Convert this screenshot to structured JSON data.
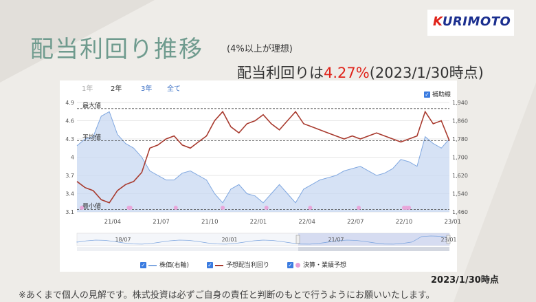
{
  "logo": {
    "text_k": "K",
    "text_rest": "URIMOTO"
  },
  "title": "配当利回り推移",
  "subtitle": "(4%以上が理想)",
  "yield_line": {
    "prefix": "配当利回りは",
    "value": "4.27%",
    "suffix": "(2023/1/30時点)"
  },
  "period_tabs": [
    {
      "label": "1年",
      "active": false
    },
    {
      "label": "2年",
      "active": true
    },
    {
      "label": "3年",
      "active": false
    },
    {
      "label": "全て",
      "active": false
    }
  ],
  "aux_line_label": "補助線",
  "legend": {
    "price": "株価(右軸)",
    "yield": "予想配当利回り",
    "events": "決算・業績予想"
  },
  "as_of": "2023/1/30時点",
  "disclaimer": "※あくまで個人の見解です。株式投資は必ずご自身の責任と判断のもとで行うようにお願いいたします。",
  "chart_data": {
    "type": "line",
    "x_ticks": [
      "21/04",
      "21/07",
      "21/10",
      "22/01",
      "22/04",
      "22/07",
      "22/10",
      "23/01"
    ],
    "y_left": {
      "ticks": [
        "3.1",
        "3.4",
        "3.7",
        "4",
        "4.3",
        "4.6",
        "4.9"
      ],
      "range": [
        3.1,
        4.9
      ]
    },
    "y_right": {
      "ticks": [
        "1,460",
        "1,540",
        "1,620",
        "1,700",
        "1,780",
        "1,860",
        "1,940"
      ],
      "range": [
        1460,
        1940
      ]
    },
    "ref_lines": [
      {
        "label": "最大値",
        "value": 4.8
      },
      {
        "label": "平均値",
        "value": 4.27
      },
      {
        "label": "最小値",
        "value": 3.14
      }
    ],
    "series": [
      {
        "name": "予想配当利回り",
        "axis": "left",
        "color": "#a83a2e",
        "x": [
          0,
          0.5,
          1,
          1.5,
          2,
          2.5,
          3,
          3.5,
          4,
          4.5,
          5,
          5.5,
          6,
          6.5,
          7,
          7.5,
          8,
          8.5,
          9,
          9.5,
          10,
          10.5,
          11,
          11.5,
          12,
          12.5,
          13,
          13.5,
          14,
          14.5,
          15,
          15.5,
          16,
          16.5,
          17,
          17.5,
          18,
          18.5,
          19,
          19.5,
          20,
          20.5,
          21,
          21.5,
          22,
          22.5,
          23
        ],
        "values": [
          3.6,
          3.5,
          3.45,
          3.3,
          3.25,
          3.45,
          3.55,
          3.6,
          3.75,
          4.15,
          4.2,
          4.3,
          4.35,
          4.2,
          4.15,
          4.25,
          4.35,
          4.6,
          4.75,
          4.5,
          4.4,
          4.55,
          4.6,
          4.7,
          4.55,
          4.45,
          4.6,
          4.75,
          4.55,
          4.5,
          4.45,
          4.4,
          4.35,
          4.3,
          4.35,
          4.3,
          4.35,
          4.4,
          4.35,
          4.3,
          4.25,
          4.3,
          4.35,
          4.75,
          4.55,
          4.6,
          4.27
        ]
      },
      {
        "name": "株価",
        "axis": "right",
        "color": "#7fa7e0",
        "x": [
          0,
          0.5,
          1,
          1.5,
          2,
          2.5,
          3,
          3.5,
          4,
          4.5,
          5,
          5.5,
          6,
          6.5,
          7,
          7.5,
          8,
          8.5,
          9,
          9.5,
          10,
          10.5,
          11,
          11.5,
          12,
          12.5,
          13,
          13.5,
          14,
          14.5,
          15,
          15.5,
          16,
          16.5,
          17,
          17.5,
          18,
          18.5,
          19,
          19.5,
          20,
          20.5,
          21,
          21.5,
          22,
          22.5,
          23
        ],
        "values": [
          1750,
          1780,
          1790,
          1880,
          1900,
          1800,
          1760,
          1740,
          1700,
          1640,
          1620,
          1600,
          1600,
          1630,
          1640,
          1620,
          1600,
          1540,
          1500,
          1560,
          1580,
          1540,
          1530,
          1500,
          1540,
          1580,
          1540,
          1500,
          1560,
          1580,
          1600,
          1610,
          1620,
          1640,
          1650,
          1660,
          1640,
          1620,
          1630,
          1650,
          1690,
          1680,
          1660,
          1790,
          1760,
          1740,
          1780
        ]
      }
    ],
    "events_x": [
      0.3,
      3.2,
      3.3,
      6.1,
      9.0,
      11.7,
      14.4,
      17.4,
      20.2,
      20.35,
      20.5
    ],
    "navigator_ticks": [
      "18/07",
      "20/01",
      "21/07",
      "23/01"
    ]
  }
}
